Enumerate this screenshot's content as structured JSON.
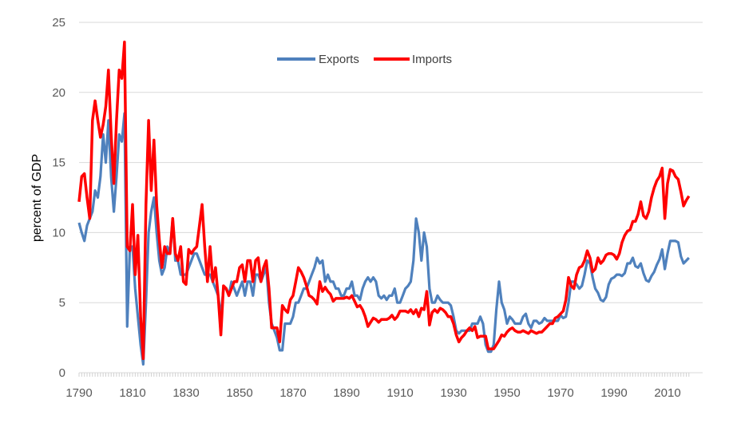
{
  "chart_data": {
    "type": "line",
    "title": "",
    "xlabel": "",
    "ylabel": "percent of GDP",
    "x_start": 1790,
    "x_end": 2018,
    "xlim": [
      1790,
      2018
    ],
    "ylim": [
      0,
      25
    ],
    "x_ticks": [
      "1790",
      "1810",
      "1830",
      "1850",
      "1870",
      "1890",
      "1910",
      "1930",
      "1950",
      "1970",
      "1990",
      "2010"
    ],
    "y_ticks": [
      "0",
      "5",
      "10",
      "15",
      "20",
      "25"
    ],
    "grid": "horizontal",
    "legend_position": "top-center",
    "series": [
      {
        "name": "Exports",
        "color": "#4f81bd",
        "values": [
          10.7,
          10.0,
          9.4,
          10.5,
          11,
          11.5,
          13,
          12.5,
          14,
          17,
          15,
          18,
          14,
          11.5,
          14,
          17,
          16.5,
          18.5,
          3.3,
          9,
          9,
          6,
          4,
          2,
          0.6,
          5,
          10,
          11.5,
          12.5,
          10,
          8,
          7,
          7.5,
          9,
          8.5,
          11,
          8,
          8,
          7,
          7,
          7,
          7.5,
          8,
          8.5,
          8.5,
          8,
          7.5,
          7,
          7,
          7,
          6.5,
          6,
          5.5,
          4,
          6,
          6,
          5.5,
          6.5,
          6,
          5.5,
          6,
          6.5,
          5.5,
          6.5,
          6.5,
          5.5,
          7,
          7,
          6.5,
          7,
          7.5,
          5,
          3.5,
          3,
          2.5,
          1.6,
          1.6,
          3.5,
          3.5,
          3.5,
          4,
          5,
          5,
          5.5,
          6,
          6,
          6.5,
          7,
          7.5,
          8.2,
          7.8,
          8,
          6.5,
          7,
          6.5,
          6.5,
          6,
          6,
          5.5,
          5.5,
          6,
          6,
          6.5,
          5.5,
          5.5,
          5.2,
          6,
          6.5,
          6.8,
          6.5,
          6.8,
          6.5,
          5.5,
          5.3,
          5.5,
          5.2,
          5.5,
          5.5,
          6,
          5,
          5,
          5.5,
          6,
          6.2,
          6.5,
          8,
          11,
          10,
          8,
          10,
          9,
          6,
          5,
          5,
          5.5,
          5.2,
          5,
          5,
          5,
          4.8,
          4,
          3,
          2.8,
          3,
          3,
          3,
          3,
          3.5,
          3.5,
          3.5,
          4,
          3.5,
          2,
          1.5,
          1.5,
          2,
          4.5,
          6.5,
          5,
          4.5,
          3.5,
          4,
          3.8,
          3.5,
          3.5,
          3.5,
          4,
          4.2,
          3.5,
          3.2,
          3.7,
          3.7,
          3.5,
          3.6,
          3.9,
          3.7,
          3.7,
          3.7,
          3.7,
          3.7,
          4.1,
          3.9,
          4,
          5,
          6.5,
          6.5,
          6.3,
          6,
          6.2,
          7,
          8,
          7.8,
          6.8,
          6,
          5.7,
          5.2,
          5.1,
          5.4,
          6.3,
          6.7,
          6.8,
          7,
          7,
          6.9,
          7.1,
          7.8,
          7.8,
          8.2,
          7.6,
          7.5,
          7.8,
          7.1,
          6.6,
          6.5,
          6.9,
          7.2,
          7.7,
          8.1,
          8.8,
          7.4,
          8.5,
          9.4,
          9.4,
          9.4,
          9.3,
          8.3,
          7.8,
          8,
          8.2
        ]
      },
      {
        "name": "Imports",
        "color": "#ff0000",
        "values": [
          12.2,
          14,
          14.2,
          12.5,
          11,
          18,
          19.4,
          18,
          16.8,
          17.7,
          19,
          21.6,
          17,
          13.5,
          18,
          21.6,
          21,
          23.6,
          9,
          8.7,
          12,
          7,
          9.8,
          4,
          1,
          12,
          18,
          13,
          16.6,
          12,
          9.5,
          7.5,
          9,
          8.5,
          8.5,
          11,
          8.5,
          8,
          9,
          6.5,
          6.3,
          8.8,
          8.5,
          8.8,
          9,
          10.5,
          12,
          9,
          6.5,
          9,
          6.5,
          7.5,
          5.5,
          2.7,
          6.2,
          6,
          5.5,
          6,
          6.5,
          6.5,
          7.5,
          7.7,
          6.5,
          8,
          8,
          6.5,
          8,
          8.2,
          6.5,
          7.5,
          8,
          6,
          3.2,
          3.2,
          3.2,
          2.2,
          4.8,
          4.5,
          4.3,
          5.2,
          5.5,
          6.5,
          7.5,
          7.2,
          6.8,
          6.2,
          5.5,
          5.4,
          5.2,
          4.9,
          6.5,
          5.8,
          6.1,
          5.8,
          5.6,
          5.1,
          5.3,
          5.3,
          5.3,
          5.3,
          5.4,
          5.3,
          5.5,
          5.1,
          4.7,
          4.8,
          4.5,
          4.0,
          3.3,
          3.6,
          3.9,
          3.8,
          3.6,
          3.8,
          3.8,
          3.8,
          3.9,
          4.1,
          3.8,
          4.0,
          4.4,
          4.4,
          4.4,
          4.3,
          4.5,
          4.2,
          4.5,
          4.0,
          4.6,
          4.5,
          5.8,
          3.4,
          4.3,
          4.5,
          4.3,
          4.6,
          4.5,
          4.3,
          4.0,
          4.0,
          3.5,
          2.7,
          2.2,
          2.5,
          2.7,
          3.0,
          3.2,
          3.0,
          3.3,
          2.5,
          2.6,
          2.6,
          2.6,
          1.7,
          1.7,
          1.7,
          2.0,
          2.3,
          2.7,
          2.6,
          2.9,
          3.1,
          3.2,
          3.0,
          2.9,
          2.9,
          3.0,
          2.9,
          2.8,
          3.0,
          2.9,
          2.8,
          2.9,
          2.9,
          3.1,
          3.3,
          3.5,
          3.5,
          3.9,
          4.0,
          4.2,
          4.4,
          5.2,
          6.8,
          6.2,
          6.0,
          7.0,
          7.5,
          7.6,
          8.0,
          8.7,
          8.2,
          7.2,
          7.4,
          8.2,
          7.8,
          8.0,
          8.4,
          8.5,
          8.5,
          8.4,
          8.1,
          8.5,
          9.3,
          9.8,
          10.1,
          10.2,
          10.8,
          10.8,
          11.3,
          12.2,
          11.2,
          11.0,
          11.5,
          12.5,
          13.2,
          13.7,
          14.0,
          14.6,
          11.0,
          13.5,
          14.5,
          14.4,
          14.0,
          13.8,
          12.9,
          11.9,
          12.3,
          12.6
        ]
      }
    ]
  }
}
